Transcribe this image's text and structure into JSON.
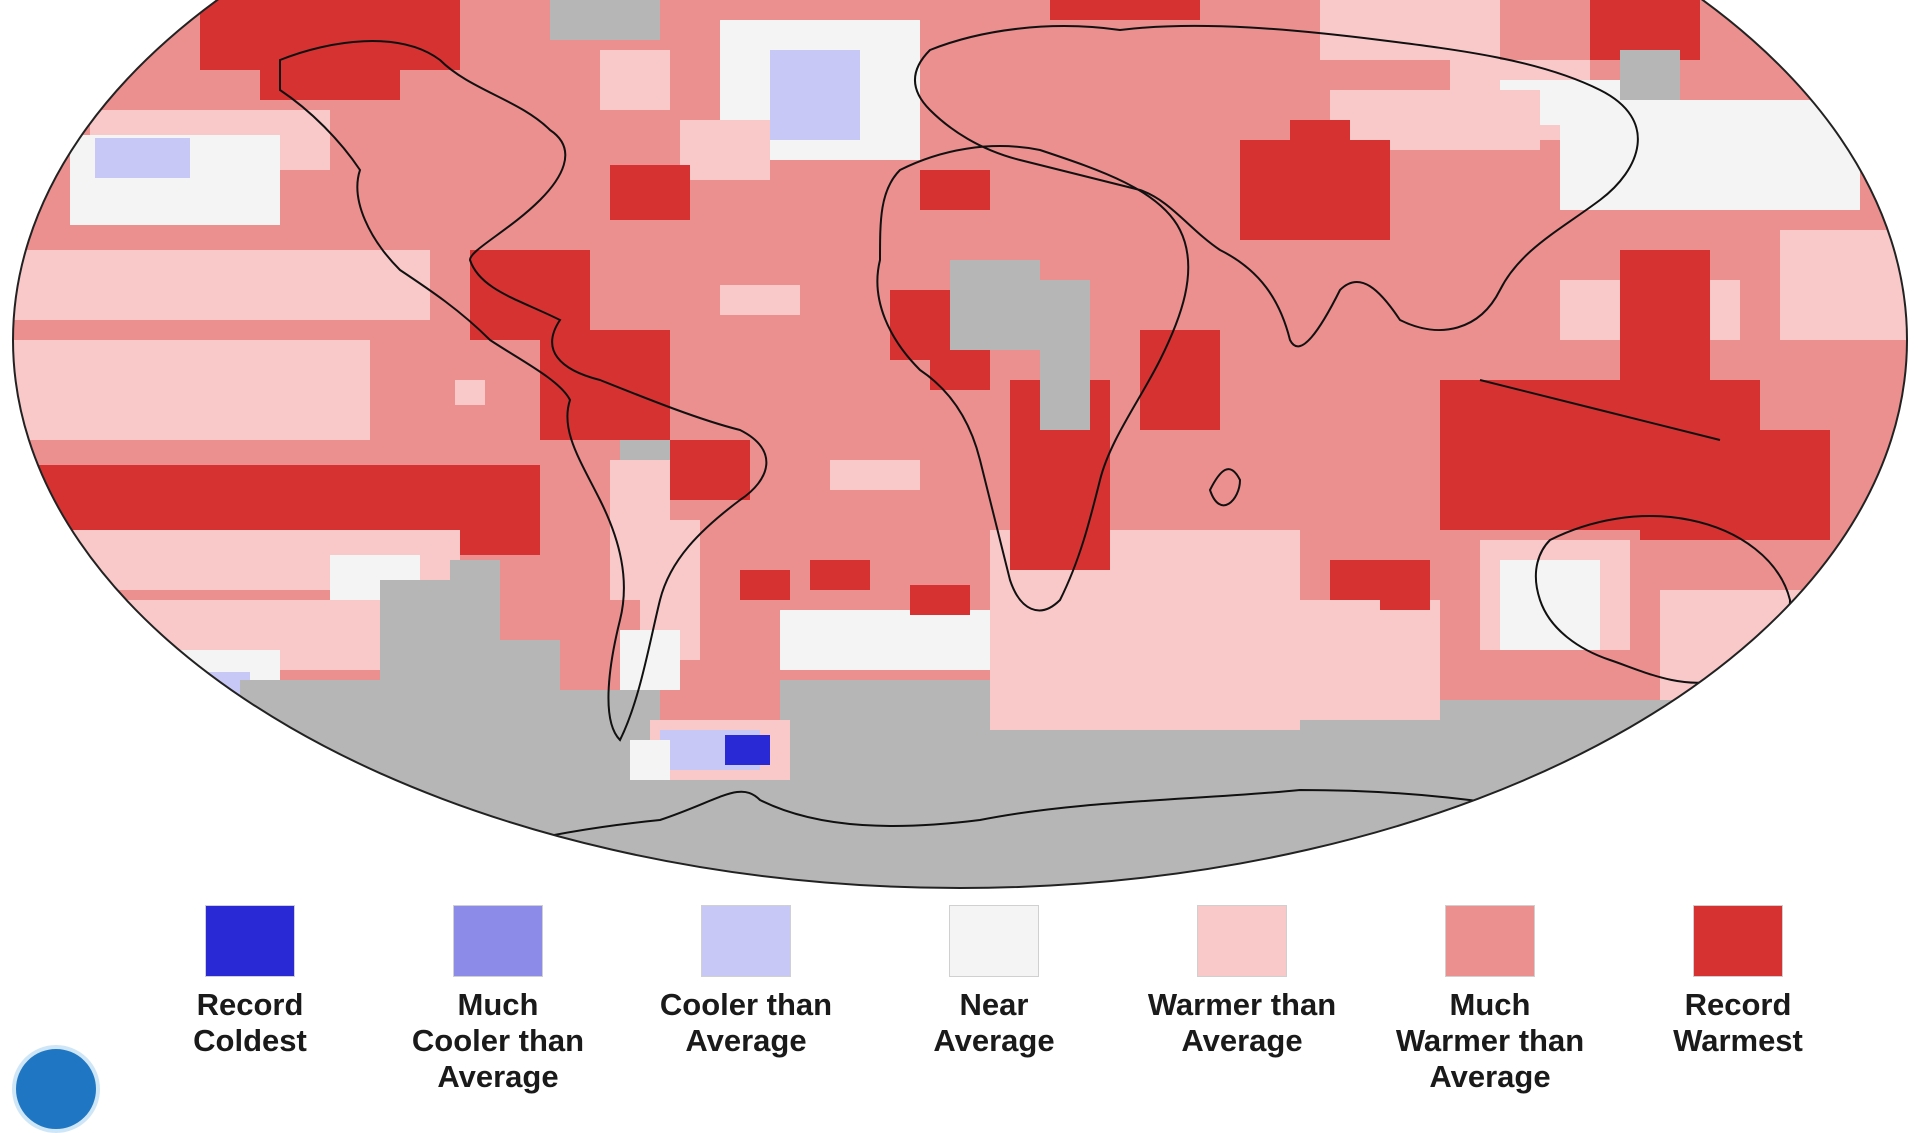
{
  "map": {
    "colors": {
      "record_coldest": "#2929d6",
      "much_cooler": "#8c8ce8",
      "cooler": "#c8c8f7",
      "near": "#f4f4f4",
      "warmer": "#f9c9c9",
      "much_warmer": "#ec8f8f",
      "record_warmest": "#d63232",
      "no_data": "#b6b6b6",
      "coastline": "#111111"
    },
    "has_missing_data_areas": true
  },
  "legend": {
    "items": [
      {
        "label": "Record\nColdest",
        "color": "#2929d6"
      },
      {
        "label": "Much\nCooler than\nAverage",
        "color": "#8c8ce8"
      },
      {
        "label": "Cooler than\nAverage",
        "color": "#c8c8f7"
      },
      {
        "label": "Near\nAverage",
        "color": "#f4f4f4"
      },
      {
        "label": "Warmer than\nAverage",
        "color": "#f9c9c9"
      },
      {
        "label": "Much\nWarmer than\nAverage",
        "color": "#ec8f8f"
      },
      {
        "label": "Record\nWarmest",
        "color": "#d63232"
      }
    ]
  },
  "logo_icon": "noaa-logo-icon"
}
